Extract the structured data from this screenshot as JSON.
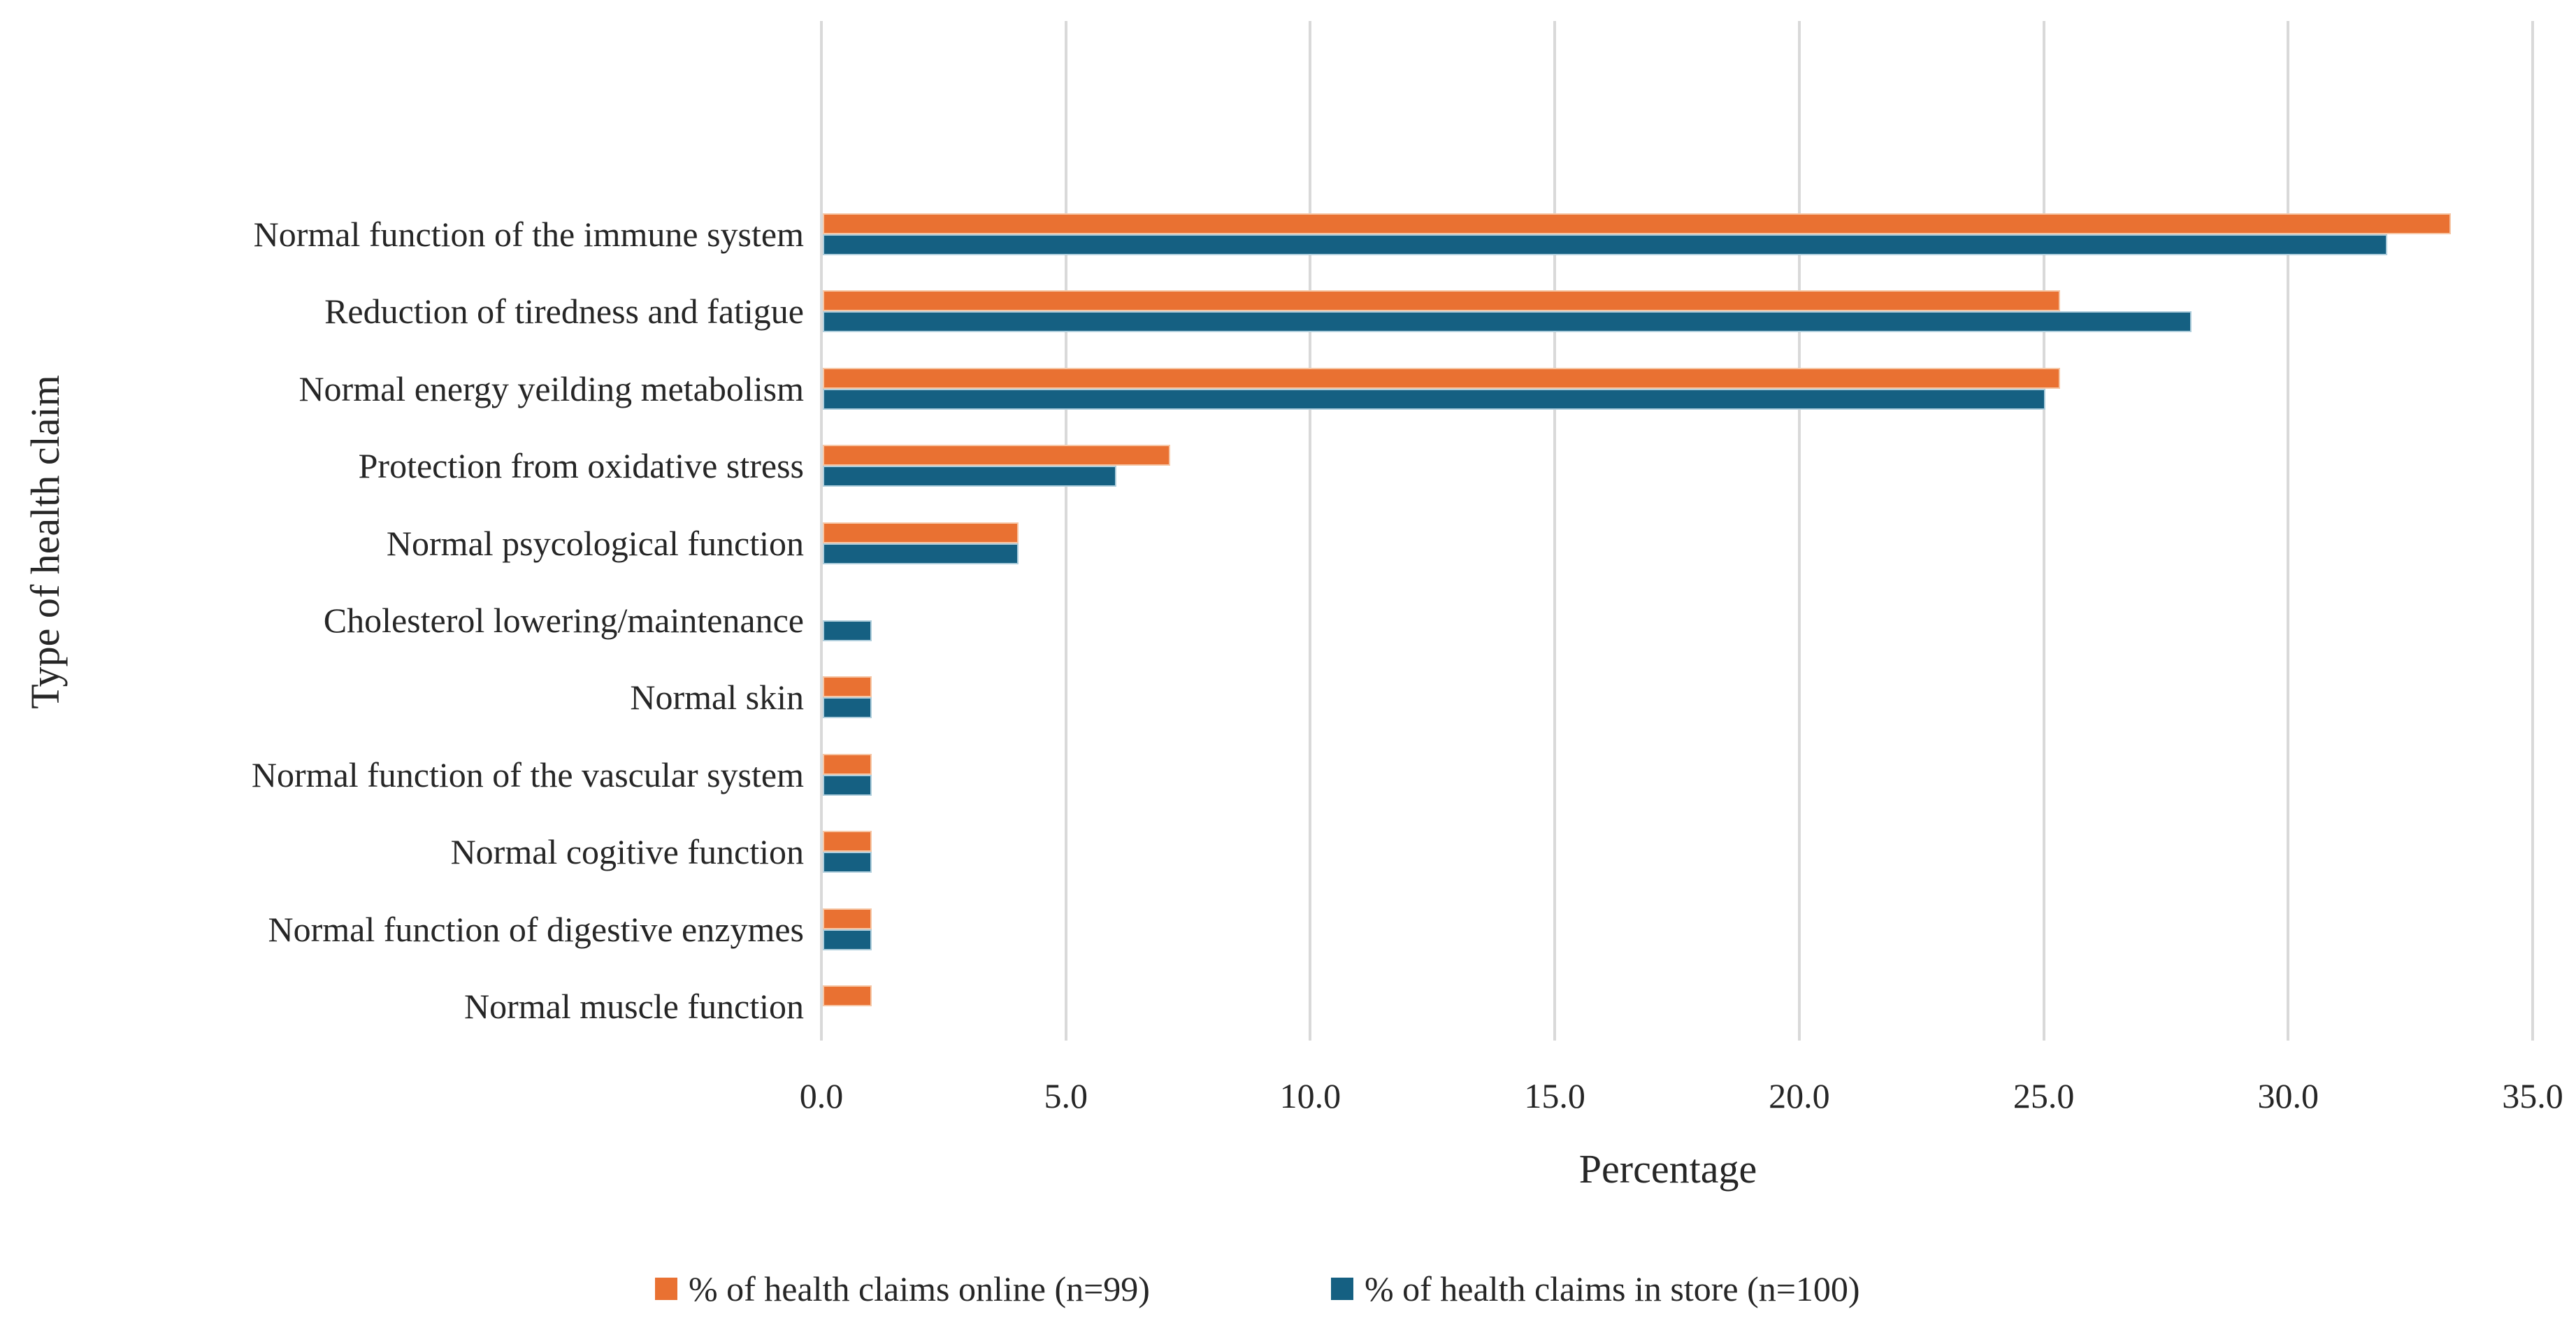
{
  "chart_data": {
    "type": "bar",
    "orientation": "horizontal",
    "title": "",
    "xlabel": "Percentage",
    "ylabel": "Type of health claim",
    "categories": [
      "Normal function of the immune system",
      "Reduction of tiredness and fatigue",
      "Normal energy yeilding metabolism",
      "Protection from oxidative stress",
      "Normal psycological function",
      "Cholesterol lowering/maintenance",
      "Normal skin",
      "Normal function of the vascular system",
      "Normal cogitive function",
      "Normal function of digestive enzymes",
      "Normal muscle function"
    ],
    "series": [
      {
        "name": "% of health claims online (n=99)",
        "color": "#E97132",
        "values": [
          33.3,
          25.3,
          25.3,
          7.1,
          4.0,
          0,
          1.0,
          1.0,
          1.0,
          1.0,
          1.0
        ]
      },
      {
        "name": "% of health claims in store (n=100)",
        "color": "#156082",
        "values": [
          32.0,
          28.0,
          25.0,
          6.0,
          4.0,
          1.0,
          1.0,
          1.0,
          1.0,
          1.0,
          0
        ]
      }
    ],
    "xlim": [
      0,
      35
    ],
    "x_ticks": [
      0,
      5,
      10,
      15,
      20,
      25,
      30,
      35
    ],
    "x_tick_labels": [
      "0.0",
      "5.0",
      "10.0",
      "15.0",
      "20.0",
      "25.0",
      "30.0",
      "35.0"
    ],
    "grid": "vertical",
    "gridline_color": "#D9D9D9",
    "text_color": "#262626",
    "legend_position": "bottom"
  }
}
